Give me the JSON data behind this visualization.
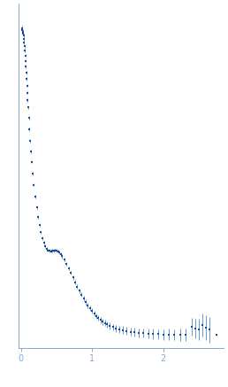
{
  "title": "",
  "xlabel": "",
  "ylabel": "",
  "xlim": [
    -0.04,
    2.85
  ],
  "ylim": [
    -0.04,
    1.08
  ],
  "xticks": [
    0,
    1,
    2
  ],
  "yticks": [],
  "dot_color": "#1a4a9a",
  "error_color": "#6699cc",
  "background_color": "#ffffff",
  "spine_color": "#88aacc",
  "tick_color": "#88aacc",
  "figsize": [
    2.58,
    4.37
  ],
  "dpi": 100,
  "data_points": [
    [
      0.01,
      1.0,
      0.01
    ],
    [
      0.015,
      0.998,
      0.008
    ],
    [
      0.02,
      0.995,
      0.007
    ],
    [
      0.025,
      0.99,
      0.007
    ],
    [
      0.03,
      0.984,
      0.006
    ],
    [
      0.035,
      0.976,
      0.006
    ],
    [
      0.04,
      0.966,
      0.006
    ],
    [
      0.045,
      0.955,
      0.006
    ],
    [
      0.05,
      0.942,
      0.005
    ],
    [
      0.055,
      0.928,
      0.005
    ],
    [
      0.06,
      0.912,
      0.005
    ],
    [
      0.065,
      0.895,
      0.005
    ],
    [
      0.07,
      0.877,
      0.005
    ],
    [
      0.075,
      0.857,
      0.005
    ],
    [
      0.08,
      0.836,
      0.005
    ],
    [
      0.085,
      0.814,
      0.005
    ],
    [
      0.09,
      0.791,
      0.005
    ],
    [
      0.095,
      0.767,
      0.005
    ],
    [
      0.1,
      0.743,
      0.005
    ],
    [
      0.11,
      0.71,
      0.005
    ],
    [
      0.12,
      0.672,
      0.005
    ],
    [
      0.13,
      0.635,
      0.005
    ],
    [
      0.14,
      0.6,
      0.005
    ],
    [
      0.15,
      0.567,
      0.005
    ],
    [
      0.165,
      0.528,
      0.005
    ],
    [
      0.18,
      0.492,
      0.005
    ],
    [
      0.2,
      0.453,
      0.005
    ],
    [
      0.22,
      0.418,
      0.005
    ],
    [
      0.24,
      0.387,
      0.005
    ],
    [
      0.26,
      0.36,
      0.005
    ],
    [
      0.28,
      0.337,
      0.005
    ],
    [
      0.3,
      0.318,
      0.005
    ],
    [
      0.32,
      0.303,
      0.005
    ],
    [
      0.34,
      0.292,
      0.005
    ],
    [
      0.36,
      0.284,
      0.005
    ],
    [
      0.38,
      0.279,
      0.005
    ],
    [
      0.4,
      0.277,
      0.005
    ],
    [
      0.42,
      0.276,
      0.005
    ],
    [
      0.44,
      0.277,
      0.005
    ],
    [
      0.46,
      0.278,
      0.005
    ],
    [
      0.48,
      0.279,
      0.005
    ],
    [
      0.5,
      0.278,
      0.005
    ],
    [
      0.52,
      0.276,
      0.005
    ],
    [
      0.54,
      0.272,
      0.005
    ],
    [
      0.56,
      0.266,
      0.005
    ],
    [
      0.58,
      0.259,
      0.006
    ],
    [
      0.61,
      0.248,
      0.006
    ],
    [
      0.64,
      0.234,
      0.006
    ],
    [
      0.67,
      0.22,
      0.006
    ],
    [
      0.7,
      0.205,
      0.006
    ],
    [
      0.73,
      0.19,
      0.007
    ],
    [
      0.76,
      0.175,
      0.007
    ],
    [
      0.79,
      0.161,
      0.007
    ],
    [
      0.82,
      0.147,
      0.007
    ],
    [
      0.85,
      0.134,
      0.007
    ],
    [
      0.88,
      0.122,
      0.008
    ],
    [
      0.91,
      0.11,
      0.008
    ],
    [
      0.94,
      0.099,
      0.008
    ],
    [
      0.97,
      0.09,
      0.008
    ],
    [
      1.0,
      0.081,
      0.009
    ],
    [
      1.03,
      0.073,
      0.009
    ],
    [
      1.06,
      0.065,
      0.009
    ],
    [
      1.09,
      0.058,
      0.009
    ],
    [
      1.12,
      0.052,
      0.01
    ],
    [
      1.15,
      0.047,
      0.01
    ],
    [
      1.18,
      0.042,
      0.01
    ],
    [
      1.21,
      0.038,
      0.01
    ],
    [
      1.25,
      0.033,
      0.011
    ],
    [
      1.29,
      0.029,
      0.011
    ],
    [
      1.33,
      0.025,
      0.011
    ],
    [
      1.38,
      0.022,
      0.012
    ],
    [
      1.43,
      0.019,
      0.013
    ],
    [
      1.48,
      0.016,
      0.013
    ],
    [
      1.54,
      0.014,
      0.014
    ],
    [
      1.6,
      0.012,
      0.014
    ],
    [
      1.66,
      0.01,
      0.015
    ],
    [
      1.72,
      0.009,
      0.015
    ],
    [
      1.79,
      0.008,
      0.016
    ],
    [
      1.86,
      0.007,
      0.016
    ],
    [
      1.93,
      0.006,
      0.016
    ],
    [
      2.0,
      0.005,
      0.017
    ],
    [
      2.08,
      0.005,
      0.018
    ],
    [
      2.16,
      0.004,
      0.018
    ],
    [
      2.24,
      0.004,
      0.019
    ],
    [
      2.32,
      0.003,
      0.02
    ],
    [
      2.4,
      0.03,
      0.028
    ],
    [
      2.45,
      0.025,
      0.032
    ],
    [
      2.5,
      0.022,
      0.035
    ],
    [
      2.55,
      0.035,
      0.038
    ],
    [
      2.6,
      0.028,
      0.04
    ],
    [
      2.65,
      0.02,
      0.042
    ],
    [
      2.75,
      0.004,
      0.004
    ]
  ]
}
